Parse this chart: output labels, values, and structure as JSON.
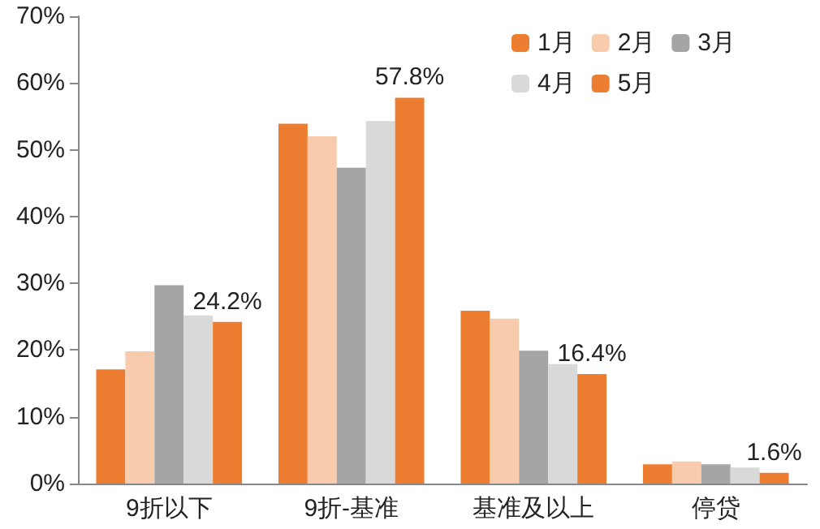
{
  "chart_data": {
    "type": "bar",
    "categories": [
      "9折以下",
      "9折-基准",
      "基准及以上",
      "停贷"
    ],
    "series": [
      {
        "name": "1月",
        "color": "#ed7d31",
        "values": [
          17.1,
          53.9,
          25.9,
          2.9
        ]
      },
      {
        "name": "2月",
        "color": "#f8cbad",
        "values": [
          19.8,
          52.0,
          24.7,
          3.3
        ]
      },
      {
        "name": "3月",
        "color": "#a5a5a5",
        "values": [
          29.7,
          47.3,
          19.9,
          2.9
        ]
      },
      {
        "name": "4月",
        "color": "#d9d9d9",
        "values": [
          25.2,
          54.3,
          17.9,
          2.4
        ]
      },
      {
        "name": "5月",
        "color": "#ed7d31",
        "values": [
          24.2,
          57.8,
          16.4,
          1.6
        ],
        "value_labels": [
          "24.2%",
          "57.8%",
          "16.4%",
          "1.6%"
        ]
      }
    ],
    "ylim": [
      0,
      70
    ],
    "yticks": [
      {
        "value": 0,
        "label": "0%"
      },
      {
        "value": 10,
        "label": "10%"
      },
      {
        "value": 20,
        "label": "20%"
      },
      {
        "value": 30,
        "label": "30%"
      },
      {
        "value": 40,
        "label": "40%"
      },
      {
        "value": 50,
        "label": "50%"
      },
      {
        "value": 60,
        "label": "60%"
      },
      {
        "value": 70,
        "label": "70%"
      }
    ],
    "grid": false,
    "legend": "top right"
  }
}
